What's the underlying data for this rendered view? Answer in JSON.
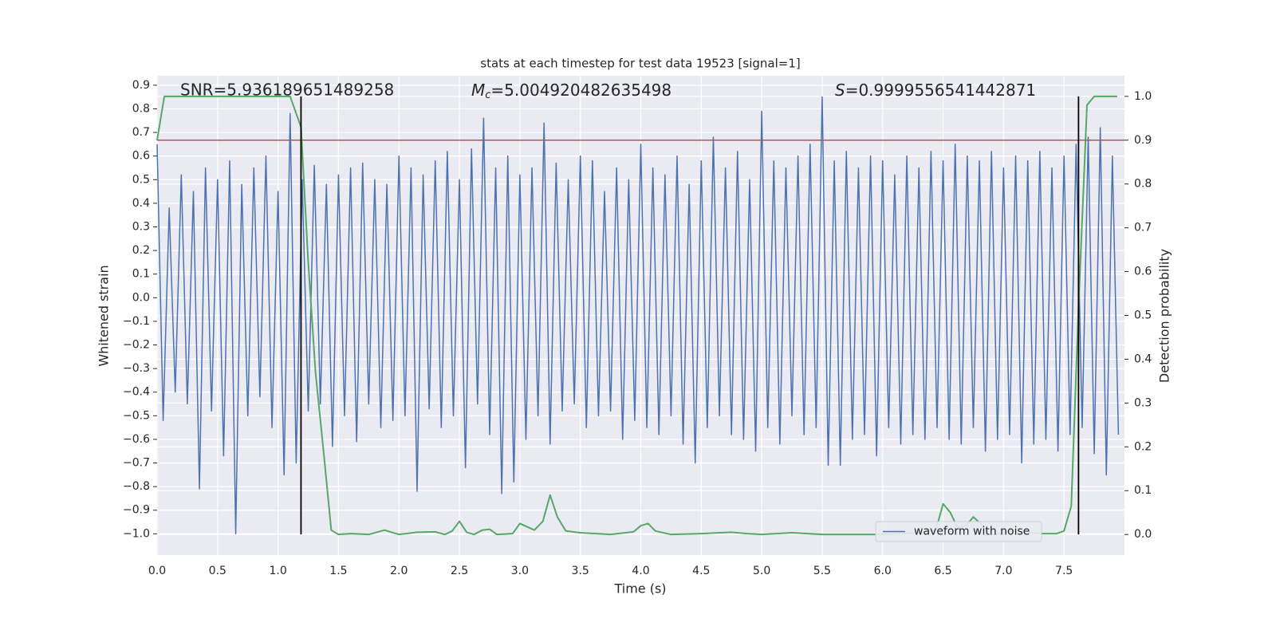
{
  "chart_data": {
    "type": "line",
    "title": "stats at each timestep for test data 19523 [signal=1]",
    "xlabel": "Time (s)",
    "ylabel": "Whitened strain",
    "y2label": "Detection probability",
    "xlim": [
      0,
      8.0
    ],
    "ylim": [
      -1.09,
      0.94
    ],
    "y2lim": [
      -0.047,
      1.047
    ],
    "xticks": [
      {
        "value": 0,
        "label": "0.0"
      },
      0.5,
      {
        "value": 1,
        "label": "1.0"
      },
      1.5,
      {
        "value": 2,
        "label": "2.0"
      },
      2.5,
      {
        "value": 3,
        "label": "3.0"
      },
      3.5,
      {
        "value": 4,
        "label": "4.0"
      },
      4.5,
      {
        "value": 5,
        "label": "5.0"
      },
      5.5,
      {
        "value": 6,
        "label": "6.0"
      },
      6.5,
      {
        "value": 7,
        "label": "7.0"
      },
      7.5
    ],
    "yticks": [
      {
        "value": -1,
        "label": "−1.0"
      },
      {
        "value": -0.9,
        "label": "−0.9"
      },
      {
        "value": -0.8,
        "label": "−0.8"
      },
      {
        "value": -0.7,
        "label": "−0.7"
      },
      {
        "value": -0.6,
        "label": "−0.6"
      },
      {
        "value": -0.5,
        "label": "−0.5"
      },
      {
        "value": -0.4,
        "label": "−0.4"
      },
      {
        "value": -0.3,
        "label": "−0.3"
      },
      {
        "value": -0.2,
        "label": "−0.2"
      },
      {
        "value": -0.1,
        "label": "−0.1"
      },
      {
        "value": 0,
        "label": "0.0"
      },
      0.1,
      0.2,
      0.3,
      0.4,
      0.5,
      0.6,
      0.7,
      0.8,
      0.9
    ],
    "y2ticks": [
      {
        "value": 0,
        "label": "0.0"
      },
      0.1,
      0.2,
      0.3,
      0.4,
      0.5,
      0.6,
      0.7,
      0.8,
      0.9,
      {
        "value": 1,
        "label": "1.0"
      }
    ],
    "grid": true,
    "legend": "lower right",
    "series": [
      {
        "name": "waveform with noise",
        "color": "#4c72b0",
        "x": [
          0,
          0.05,
          0.1,
          0.15,
          0.2,
          0.25,
          0.3,
          0.35,
          0.4,
          0.45,
          0.5,
          0.55,
          0.6,
          0.65,
          0.7,
          0.75,
          0.8,
          0.85,
          0.9,
          0.95,
          1,
          1.05,
          1.1,
          1.15,
          1.2,
          1.25,
          1.3,
          1.35,
          1.4,
          1.45,
          1.5,
          1.55,
          1.6,
          1.65,
          1.7,
          1.75,
          1.8,
          1.85,
          1.9,
          1.95,
          2,
          2.05,
          2.1,
          2.15,
          2.2,
          2.25,
          2.3,
          2.35,
          2.4,
          2.45,
          2.5,
          2.55,
          2.6,
          2.65,
          2.7,
          2.75,
          2.8,
          2.85,
          2.9,
          2.95,
          3,
          3.05,
          3.1,
          3.15,
          3.2,
          3.25,
          3.3,
          3.35,
          3.4,
          3.45,
          3.5,
          3.55,
          3.6,
          3.65,
          3.7,
          3.75,
          3.8,
          3.85,
          3.9,
          3.95,
          4,
          4.05,
          4.1,
          4.15,
          4.2,
          4.25,
          4.3,
          4.35,
          4.4,
          4.45,
          4.5,
          4.55,
          4.6,
          4.65,
          4.7,
          4.75,
          4.8,
          4.85,
          4.9,
          4.95,
          5,
          5.05,
          5.1,
          5.15,
          5.2,
          5.25,
          5.3,
          5.35,
          5.4,
          5.45,
          5.5,
          5.55,
          5.6,
          5.65,
          5.7,
          5.75,
          5.8,
          5.85,
          5.9,
          5.95,
          6,
          6.05,
          6.1,
          6.15,
          6.2,
          6.25,
          6.3,
          6.35,
          6.4,
          6.45,
          6.5,
          6.55,
          6.6,
          6.65,
          6.7,
          6.75,
          6.8,
          6.85,
          6.9,
          6.95,
          7,
          7.05,
          7.1,
          7.15,
          7.2,
          7.25,
          7.3,
          7.35,
          7.4,
          7.45,
          7.5,
          7.55,
          7.6,
          7.65,
          7.7,
          7.75,
          7.8,
          7.85,
          7.9,
          7.95
        ],
        "values": [
          0.65,
          -0.52,
          0.38,
          -0.4,
          0.52,
          -0.45,
          0.45,
          -0.81,
          0.55,
          -0.48,
          0.5,
          -0.67,
          0.58,
          -1.0,
          0.48,
          -0.5,
          0.55,
          -0.42,
          0.6,
          -0.55,
          0.45,
          -0.75,
          0.78,
          -0.7,
          0.5,
          -0.48,
          0.56,
          -0.45,
          0.48,
          -0.63,
          0.52,
          -0.5,
          0.55,
          -0.61,
          0.57,
          -0.45,
          0.5,
          -0.55,
          0.48,
          -0.52,
          0.6,
          -0.5,
          0.55,
          -0.82,
          0.52,
          -0.47,
          0.58,
          -0.55,
          0.62,
          -0.5,
          0.5,
          -0.72,
          0.63,
          -0.45,
          0.76,
          -0.58,
          0.55,
          -0.83,
          0.6,
          -0.78,
          0.52,
          -0.6,
          0.55,
          -0.5,
          0.74,
          -0.62,
          0.57,
          -0.48,
          0.5,
          -0.45,
          0.6,
          -0.55,
          0.58,
          -0.5,
          0.45,
          -0.48,
          0.55,
          -0.6,
          0.5,
          -0.52,
          0.65,
          -0.55,
          0.55,
          -0.58,
          0.52,
          -0.5,
          0.6,
          -0.62,
          0.48,
          -0.7,
          0.58,
          -0.55,
          0.68,
          -0.5,
          0.55,
          -0.58,
          0.62,
          -0.6,
          0.5,
          -0.65,
          0.79,
          -0.55,
          0.58,
          -0.62,
          0.55,
          -0.5,
          0.6,
          -0.58,
          0.65,
          -0.55,
          0.85,
          -0.71,
          0.58,
          -0.71,
          0.62,
          -0.6,
          0.55,
          -0.58,
          0.6,
          -0.67,
          0.58,
          -0.55,
          0.52,
          -0.62,
          0.6,
          -0.58,
          0.55,
          -0.6,
          0.62,
          -0.55,
          0.58,
          -0.6,
          0.65,
          -0.62,
          0.6,
          -0.55,
          0.58,
          -0.65,
          0.62,
          -0.6,
          0.55,
          -0.58,
          0.6,
          -0.7,
          0.58,
          -0.62,
          0.62,
          -0.6,
          0.55,
          -0.65,
          0.6,
          -0.58,
          0.65,
          -0.55,
          0.68,
          -0.66,
          0.72,
          -0.75,
          0.6,
          -0.58
        ]
      },
      {
        "color": "#55a868",
        "axis": "y2",
        "x": [
          0,
          0.06,
          0.15,
          1.1,
          1.19,
          1.25,
          1.31,
          1.38,
          1.44,
          1.5,
          1.6,
          1.75,
          1.88,
          2,
          2.15,
          2.3,
          2.38,
          2.44,
          2.5,
          2.56,
          2.62,
          2.69,
          2.75,
          2.81,
          2.94,
          3,
          3.12,
          3.19,
          3.25,
          3.31,
          3.38,
          3.5,
          3.75,
          3.94,
          4,
          4.06,
          4.12,
          4.25,
          4.5,
          4.75,
          4.88,
          5,
          5.25,
          5.5,
          6,
          6.25,
          6.44,
          6.5,
          6.56,
          6.62,
          6.69,
          6.75,
          6.81,
          6.88,
          6.94,
          7.06,
          7.19,
          7.31,
          7.44,
          7.5,
          7.56,
          7.62,
          7.69,
          7.75,
          7.94
        ],
        "values": [
          0.9,
          1.0,
          1.0,
          1.0,
          0.93,
          0.62,
          0.37,
          0.18,
          0.01,
          0,
          0.002,
          0,
          0.01,
          0,
          0.005,
          0.006,
          0,
          0.008,
          0.03,
          0.005,
          0,
          0.01,
          0.012,
          0,
          0.002,
          0.025,
          0.01,
          0.03,
          0.09,
          0.04,
          0.008,
          0.004,
          0,
          0.006,
          0.02,
          0.025,
          0.008,
          0,
          0.002,
          0.005,
          0.002,
          0,
          0.004,
          0,
          0,
          0.003,
          0.01,
          0.07,
          0.05,
          0.015,
          0.02,
          0.04,
          0.025,
          0,
          0,
          0.008,
          0.005,
          0.002,
          0.002,
          0.008,
          0.065,
          0.52,
          0.98,
          1.0,
          1.0
        ]
      }
    ],
    "hlines": [
      {
        "value": 0.9,
        "axis": "y2",
        "color": "#c44e52"
      }
    ],
    "vlines": [
      {
        "x": 1.19,
        "axis": "y2",
        "range": [
          0,
          1
        ],
        "color": "#000000"
      },
      {
        "x": 7.62,
        "axis": "y2",
        "range": [
          0,
          1
        ],
        "color": "#000000"
      }
    ],
    "annotations": [
      {
        "text": "SNR=5.936189651489258"
      },
      {
        "symbol": "M",
        "subscript": "c",
        "text": "=5.004920482635498"
      },
      {
        "symbol": "S",
        "text": "=0.9999556541442871"
      }
    ]
  }
}
